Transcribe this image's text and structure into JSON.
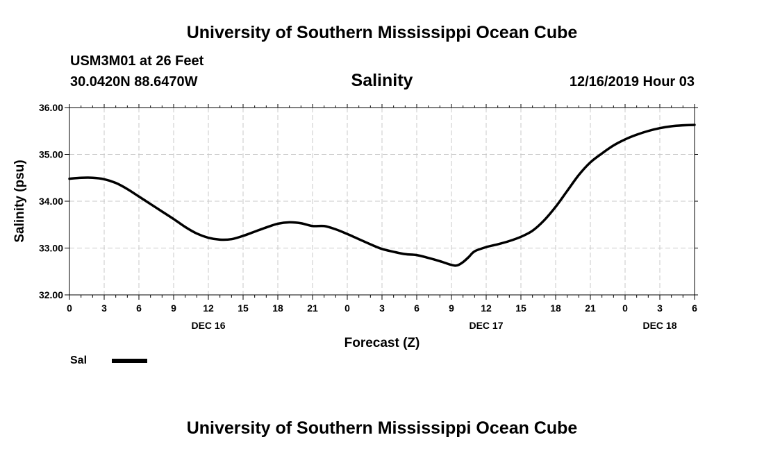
{
  "header": {
    "title_top": "University of Southern Mississippi Ocean Cube",
    "title_bottom": "University of Southern Mississippi Ocean Cube",
    "station": "USM3M01 at 26 Feet",
    "location": "30.0420N 88.6470W",
    "variable": "Salinity",
    "run_time": "12/16/2019 Hour 03"
  },
  "legend": {
    "label": "Sal"
  },
  "chart_data": {
    "type": "line",
    "title": "Salinity",
    "xlabel": "Forecast (Z)",
    "ylabel": "Salinity (psu)",
    "ylim": [
      32.0,
      36.0
    ],
    "yticks": [
      "32.00",
      "33.00",
      "34.00",
      "35.00",
      "36.00"
    ],
    "xlim": [
      0,
      54
    ],
    "xticks": [
      "0",
      "3",
      "6",
      "9",
      "12",
      "15",
      "18",
      "21",
      "0",
      "3",
      "6",
      "9",
      "12",
      "15",
      "18",
      "21",
      "0",
      "3",
      "6"
    ],
    "date_labels": [
      {
        "hour": 12,
        "label": "DEC 16"
      },
      {
        "hour": 36,
        "label": "DEC 17"
      },
      {
        "hour": 51,
        "label": "DEC 18"
      }
    ],
    "grid": true,
    "series": [
      {
        "name": "Sal",
        "x": [
          0,
          1,
          2,
          3,
          4,
          5,
          6,
          7,
          8,
          9,
          10,
          11,
          12,
          13,
          14,
          15,
          16,
          17,
          18,
          19,
          20,
          21,
          22,
          23,
          24,
          25,
          26,
          27,
          28,
          29,
          30,
          31,
          32,
          33,
          33.5,
          34,
          34.5,
          35,
          36,
          37,
          38,
          39,
          40,
          41,
          42,
          43,
          44,
          45,
          46,
          47,
          48,
          49,
          50,
          51,
          52,
          53,
          54
        ],
        "values": [
          34.48,
          34.5,
          34.5,
          34.47,
          34.39,
          34.26,
          34.1,
          33.94,
          33.78,
          33.62,
          33.45,
          33.31,
          33.22,
          33.18,
          33.19,
          33.26,
          33.35,
          33.44,
          33.52,
          33.55,
          33.53,
          33.47,
          33.47,
          33.4,
          33.3,
          33.19,
          33.08,
          32.98,
          32.92,
          32.87,
          32.85,
          32.79,
          32.72,
          32.64,
          32.63,
          32.7,
          32.81,
          32.93,
          33.02,
          33.08,
          33.15,
          33.24,
          33.37,
          33.59,
          33.88,
          34.22,
          34.56,
          34.83,
          35.02,
          35.19,
          35.32,
          35.42,
          35.5,
          35.56,
          35.6,
          35.62,
          35.63
        ]
      }
    ]
  }
}
